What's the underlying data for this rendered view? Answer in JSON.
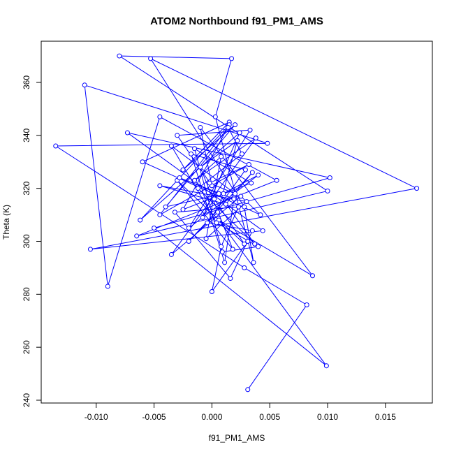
{
  "chart_data": {
    "type": "line",
    "title": "ATOM2 Northbound f91_PM1_AMS",
    "xlabel": "f91_PM1_AMS",
    "ylabel": "Theta (K)",
    "xlim": [
      -0.0135,
      0.0178
    ],
    "ylim": [
      244,
      370.5
    ],
    "xticks": [
      -0.01,
      -0.005,
      0.0,
      0.005,
      0.01,
      0.015
    ],
    "xtick_labels": [
      "-0.010",
      "-0.005",
      "0.000",
      "0.005",
      "0.010",
      "0.015"
    ],
    "yticks": [
      240,
      260,
      280,
      300,
      320,
      340,
      360
    ],
    "ytick_labels": [
      "240",
      "260",
      "280",
      "300",
      "320",
      "340",
      "360"
    ],
    "grid": false,
    "series": [
      {
        "color": "#0000ff",
        "marker": "open-circle",
        "x": [
          0.0031,
          0.0082,
          0.0028,
          -0.0135,
          0.0048,
          -0.011,
          -0.009,
          -0.0045,
          0.0056,
          -0.0065,
          0.01,
          -0.008,
          0.0017,
          0.0003,
          0.0036,
          0.0028,
          -0.0053,
          0.0177,
          -0.0105,
          0.0044,
          -0.0073,
          0.0102,
          -0.005,
          0.0099,
          0.0006,
          0.0087,
          -0.001,
          0.0,
          -0.003,
          0.0033,
          -0.002,
          0.004,
          0.001,
          -0.004,
          0.002,
          -0.0025,
          0.0015,
          -0.006,
          0.0042,
          0.0025,
          -0.0035,
          0.0038,
          -0.0015,
          0.0008,
          -0.0005,
          0.003,
          -0.0045,
          0.0012,
          0.0035,
          -0.002,
          0.0005,
          0.0022,
          -0.001,
          0.0018,
          -0.003,
          0.0028,
          0.0002,
          -0.0008,
          0.0024,
          -0.0062,
          0.0015,
          -0.0025,
          0.0034,
          -0.0015,
          0.0009,
          0.004,
          0.0004,
          -0.0035,
          0.002,
          -0.0002,
          0.0032,
          -0.0045,
          0.0014,
          0.0026,
          -0.0012,
          0.0037,
          0.0006,
          -0.0028,
          0.0019,
          0.0011,
          -0.0018,
          0.0029,
          -0.0004,
          0.0035,
          0.0016,
          -0.0032,
          0.0023,
          0.0008,
          0.0,
          0.0031
        ],
        "y": [
          244,
          276,
          290,
          336,
          337,
          359,
          283,
          347,
          323,
          302,
          319,
          370,
          369,
          347,
          292,
          313,
          369,
          320,
          297,
          304,
          341,
          324,
          305,
          253,
          308,
          287,
          343,
          321,
          340,
          342,
          305,
          325,
          318,
          313,
          344,
          327,
          345,
          330,
          310,
          317,
          295,
          339,
          323,
          332,
          301,
          315,
          321,
          314,
          326,
          300,
          311,
          338,
          328,
          297,
          323,
          299,
          316,
          309,
          341,
          308,
          344,
          312,
          322,
          335,
          296,
          298,
          307,
          336,
          318,
          322,
          329,
          310,
          343,
          333,
          320,
          299,
          318,
          324,
          316,
          292,
          333,
          327,
          307,
          304,
          286,
          311,
          313,
          298,
          281,
          300
        ]
      }
    ]
  }
}
